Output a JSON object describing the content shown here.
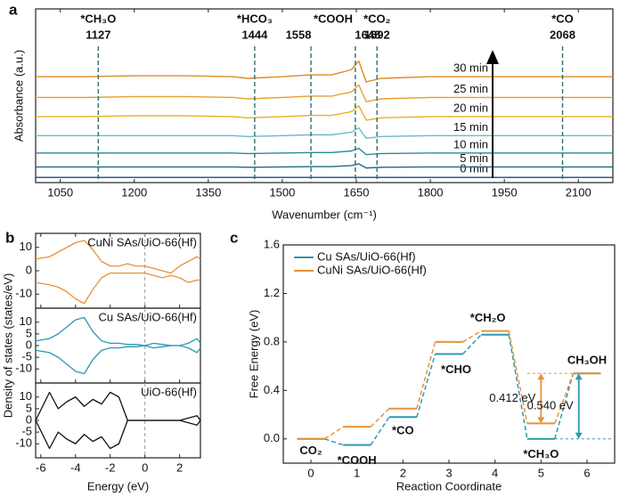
{
  "chart_data": [
    {
      "type": "line",
      "panel_label": "a",
      "xlabel": "Wavenumber (cm⁻¹)",
      "ylabel": "Absorbance (a.u.)",
      "xlim": [
        1000,
        2170
      ],
      "xticks": [
        1050,
        1200,
        1350,
        1500,
        1650,
        1800,
        1950,
        2100
      ],
      "ylim": [
        0,
        10
      ],
      "x": [
        1000,
        1100,
        1200,
        1300,
        1400,
        1430,
        1500,
        1557,
        1600,
        1640,
        1655,
        1670,
        1700,
        1800,
        1900,
        2000,
        2100,
        2170
      ],
      "series": [
        {
          "name": "0 min",
          "color": "#1f4e79",
          "values": [
            0.3,
            0.3,
            0.3,
            0.3,
            0.3,
            0.3,
            0.3,
            0.3,
            0.3,
            0.3,
            0.3,
            0.3,
            0.3,
            0.3,
            0.3,
            0.3,
            0.3,
            0.3
          ]
        },
        {
          "name": "5 min",
          "color": "#1b6a8a",
          "values": [
            0.9,
            0.9,
            0.9,
            0.9,
            0.9,
            0.88,
            0.9,
            0.92,
            0.92,
            0.98,
            1.08,
            0.84,
            0.88,
            0.9,
            0.9,
            0.9,
            0.9,
            0.9
          ]
        },
        {
          "name": "10 min",
          "color": "#2a8a9a",
          "values": [
            1.7,
            1.7,
            1.7,
            1.7,
            1.7,
            1.67,
            1.7,
            1.73,
            1.73,
            1.82,
            1.97,
            1.61,
            1.67,
            1.7,
            1.7,
            1.7,
            1.7,
            1.7
          ]
        },
        {
          "name": "15 min",
          "color": "#6cb8cc",
          "values": [
            2.7,
            2.7,
            2.7,
            2.7,
            2.7,
            2.65,
            2.7,
            2.75,
            2.75,
            2.9,
            3.15,
            2.55,
            2.65,
            2.7,
            2.7,
            2.7,
            2.7,
            2.7
          ]
        },
        {
          "name": "20 min",
          "color": "#e8b020",
          "values": [
            3.8,
            3.8,
            3.85,
            3.85,
            3.8,
            3.73,
            3.8,
            3.87,
            3.87,
            4.08,
            4.43,
            3.59,
            3.73,
            3.8,
            3.8,
            3.8,
            3.8,
            3.8
          ]
        },
        {
          "name": "25 min",
          "color": "#e8a030",
          "values": [
            4.9,
            4.9,
            4.95,
            4.95,
            4.9,
            4.82,
            4.9,
            4.98,
            4.98,
            5.22,
            5.62,
            4.66,
            4.82,
            4.9,
            4.9,
            4.9,
            4.9,
            4.9
          ]
        },
        {
          "name": "30 min",
          "color": "#e08a20",
          "values": [
            6.1,
            6.1,
            6.15,
            6.15,
            6.1,
            6.0,
            6.1,
            6.2,
            6.2,
            6.5,
            7.0,
            5.8,
            6.0,
            6.1,
            6.1,
            6.1,
            6.1,
            6.1
          ]
        }
      ],
      "annotations": [
        {
          "species": "*CH₃O",
          "wavenumbers": [
            1127
          ]
        },
        {
          "species": "*HCO₃",
          "wavenumbers": [
            1444
          ]
        },
        {
          "species": "*COOH",
          "wavenumbers": [
            1558,
            1648
          ]
        },
        {
          "species": "*CO₂",
          "wavenumbers": [
            1692
          ]
        },
        {
          "species": "*CO",
          "wavenumbers": [
            2068
          ]
        }
      ],
      "annotation_color": "#e8762b"
    },
    {
      "type": "line",
      "panel_label": "b",
      "ylabel": "Density of states (states/eV)",
      "name": "CuNi SAs/UiO-66(Hf)",
      "color": "#e8923a",
      "xlim": [
        -6.3,
        3.2
      ],
      "xticks": [
        -6,
        -4,
        -2,
        0,
        2
      ],
      "ylim": [
        -16,
        16
      ],
      "yticks": [
        -10,
        0,
        10
      ],
      "fermi_level": 0,
      "x": [
        -6.3,
        -5.5,
        -5,
        -4.5,
        -4,
        -3.5,
        -3,
        -2.5,
        -2,
        -1.5,
        -1,
        -0.5,
        0,
        0.5,
        1,
        1.5,
        2,
        2.5,
        3,
        3.2
      ],
      "series": [
        {
          "values": [
            5,
            6,
            8,
            10,
            12,
            13,
            9,
            4,
            2,
            2,
            3,
            2,
            2,
            1,
            0,
            -1,
            2,
            4,
            6,
            5
          ]
        },
        {
          "values": [
            -5,
            -6,
            -7,
            -9,
            -12,
            -14,
            -8,
            -3,
            -1,
            -1,
            -1,
            -1,
            -1,
            -2,
            -3,
            -2,
            -3,
            -5,
            -4,
            -4
          ]
        }
      ]
    },
    {
      "type": "line",
      "name": "Cu SAs/UiO-66(Hf)",
      "color": "#2a9ab0",
      "xlim": [
        -6.3,
        3.2
      ],
      "xticks": [
        -6,
        -4,
        -2,
        0,
        2
      ],
      "ylim": [
        -16,
        16
      ],
      "yticks": [
        -10,
        -5,
        0,
        5,
        10
      ],
      "fermi_level": 0,
      "x": [
        -6.3,
        -5.5,
        -5,
        -4.5,
        -4,
        -3.5,
        -3,
        -2.5,
        -2,
        -1.5,
        -1,
        -0.5,
        0,
        0.5,
        1,
        1.5,
        2,
        2.5,
        3,
        3.2
      ],
      "series": [
        {
          "values": [
            2,
            3,
            5,
            8,
            11,
            12,
            6,
            2,
            1,
            1,
            0.5,
            0.5,
            0,
            1,
            0.5,
            0,
            0,
            1,
            3,
            1
          ]
        },
        {
          "values": [
            -2,
            -3,
            -5,
            -8,
            -11,
            -12,
            -6,
            -2,
            -1,
            -1,
            -0.5,
            -0.5,
            0,
            -1,
            -0.5,
            0,
            0,
            -1,
            -3,
            -1
          ]
        }
      ]
    },
    {
      "type": "line",
      "name": "UiO-66(Hf)",
      "color": "#111111",
      "xlabel": "Energy (eV)",
      "xlim": [
        -6.3,
        3.2
      ],
      "xticks": [
        -6,
        -4,
        -2,
        0,
        2
      ],
      "ylim": [
        -16,
        16
      ],
      "yticks": [
        -10,
        -5,
        0,
        5,
        10
      ],
      "fermi_level": 0,
      "x": [
        -6.3,
        -5.5,
        -5,
        -4.5,
        -4,
        -3.5,
        -3,
        -2.5,
        -2,
        -1.5,
        -1,
        -0.5,
        0,
        0.5,
        1,
        1.5,
        2,
        2.5,
        3,
        3.2
      ],
      "series": [
        {
          "values": [
            0,
            12,
            5,
            8,
            10,
            6,
            9,
            7,
            12,
            10,
            0,
            0,
            0,
            0,
            0,
            0,
            0,
            1,
            2,
            0
          ]
        },
        {
          "values": [
            0,
            -12,
            -5,
            -8,
            -10,
            -6,
            -9,
            -7,
            -12,
            -10,
            0,
            0,
            0,
            0,
            0,
            0,
            0,
            -1,
            -2,
            0
          ]
        }
      ]
    },
    {
      "type": "energy",
      "panel_label": "c",
      "xlabel": "Reaction Coordinate",
      "ylabel": "Free Energy (eV)",
      "xlim": [
        -0.6,
        6.6
      ],
      "xticks": [
        0,
        1,
        2,
        3,
        4,
        5,
        6
      ],
      "ylim": [
        -0.2,
        1.6
      ],
      "yticks": [
        {
          "value": 0,
          "label": "0.0"
        },
        0.4,
        0.8,
        1.2,
        1.6
      ],
      "categories": [
        "CO₂",
        "*COOH",
        "*CO",
        "*CHO",
        "*CH₂O",
        "*CH₃O",
        "CH₃OH"
      ],
      "series": [
        {
          "name": "Cu SAs/UiO-66(Hf)",
          "color": "#2a9ab0",
          "values": [
            0,
            -0.05,
            0.18,
            0.7,
            0.86,
            0.0,
            0.54
          ]
        },
        {
          "name": "CuNi SAs/UiO-66(Hf)",
          "color": "#e8923a",
          "values": [
            0,
            0.1,
            0.25,
            0.8,
            0.89,
            0.128,
            0.54
          ]
        }
      ],
      "annotations": [
        {
          "value": 0.412,
          "label": "0.412 eV"
        },
        {
          "value": 0.54,
          "label": "0.540 eV"
        }
      ],
      "legend": "upper left"
    }
  ]
}
